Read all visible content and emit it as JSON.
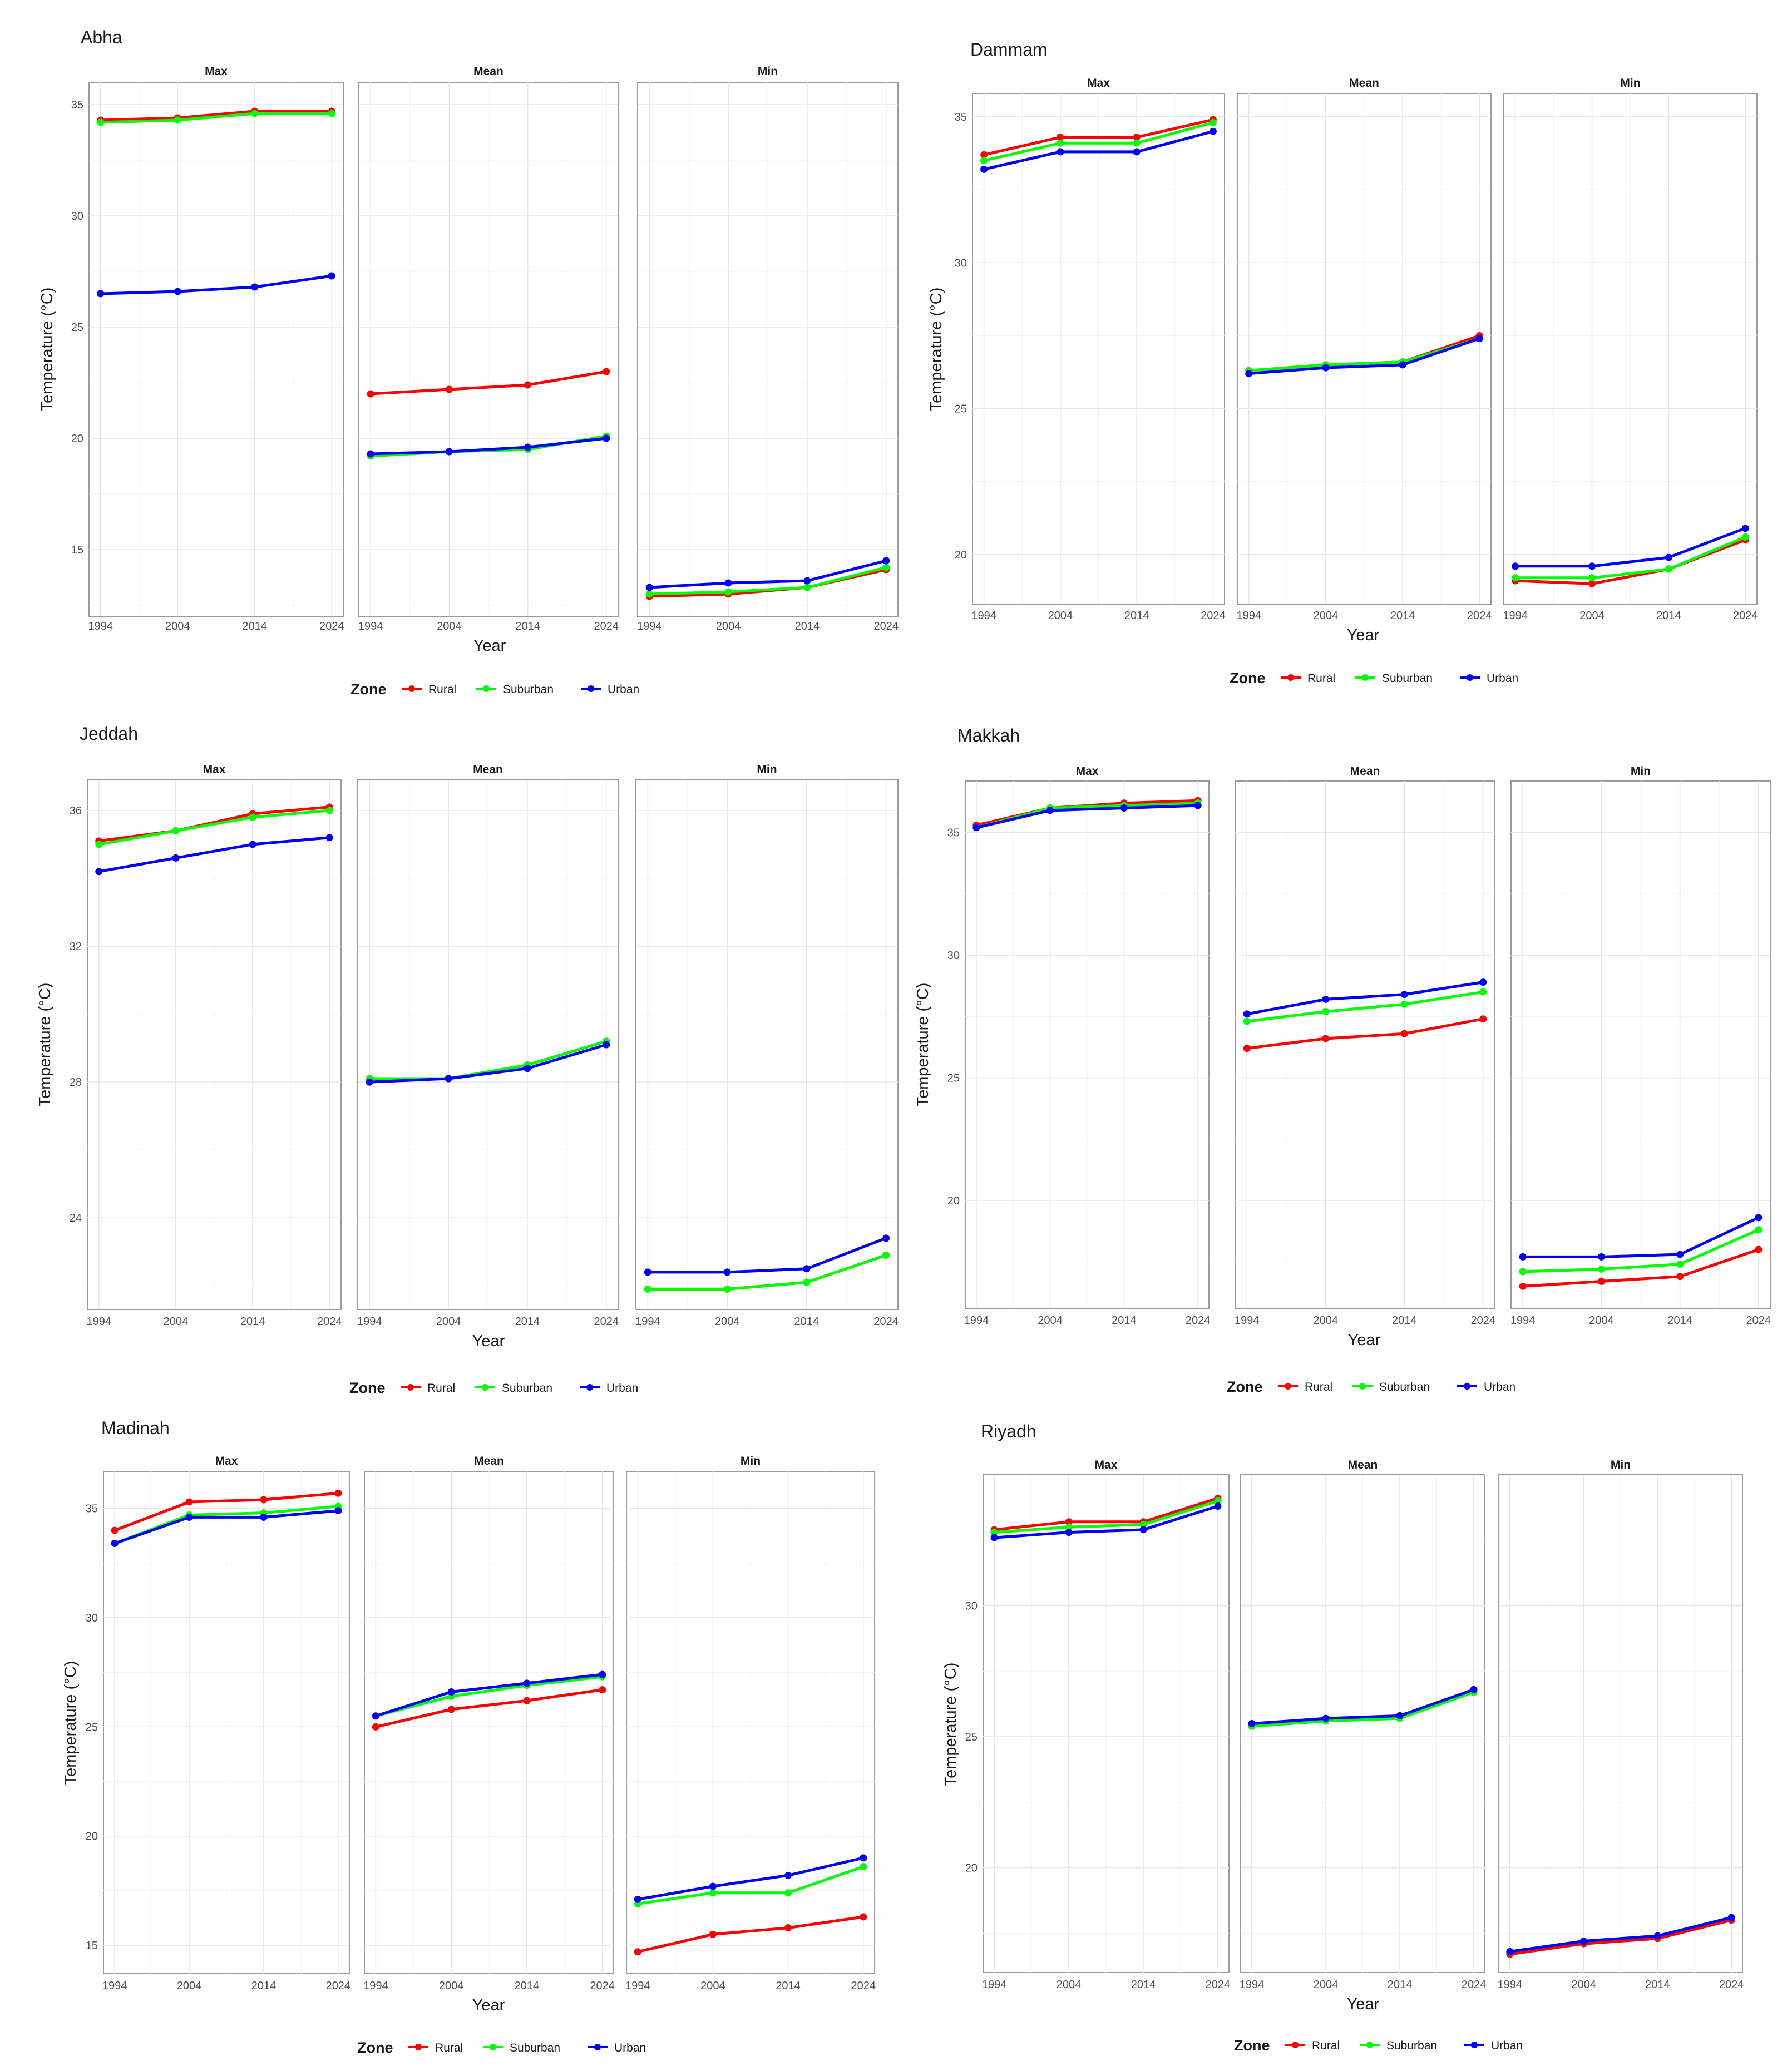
{
  "legend": {
    "title": "Zone",
    "zones": [
      "Rural",
      "Suburban",
      "Urban"
    ]
  },
  "colors": {
    "Rural": "#ff0000",
    "Suburban": "#00ff00",
    "Urban": "#0000ff"
  },
  "chart_data": [
    {
      "type": "line",
      "title": "Abha",
      "xlabel": "Year",
      "ylabel": "Temperature (°C)",
      "x": [
        1994,
        2004,
        2014,
        2024
      ],
      "x_tick_labels": [
        "1994",
        "2004",
        "2014",
        "2024"
      ],
      "ylim": [
        12,
        36
      ],
      "y_ticks": [
        15,
        20,
        25,
        30,
        35
      ],
      "facets": [
        {
          "label": "Max",
          "series": [
            {
              "name": "Rural",
              "values": [
                34.3,
                34.4,
                34.7,
                34.7
              ]
            },
            {
              "name": "Suburban",
              "values": [
                34.2,
                34.3,
                34.6,
                34.6
              ]
            },
            {
              "name": "Urban",
              "values": [
                26.5,
                26.6,
                26.8,
                27.3
              ]
            }
          ]
        },
        {
          "label": "Mean",
          "series": [
            {
              "name": "Rural",
              "values": [
                22.0,
                22.2,
                22.4,
                23.0
              ]
            },
            {
              "name": "Suburban",
              "values": [
                19.2,
                19.4,
                19.5,
                20.1
              ]
            },
            {
              "name": "Urban",
              "values": [
                19.3,
                19.4,
                19.6,
                20.0
              ]
            }
          ]
        },
        {
          "label": "Min",
          "series": [
            {
              "name": "Rural",
              "values": [
                12.9,
                13.0,
                13.3,
                14.1
              ]
            },
            {
              "name": "Suburban",
              "values": [
                13.0,
                13.1,
                13.3,
                14.2
              ]
            },
            {
              "name": "Urban",
              "values": [
                13.3,
                13.5,
                13.6,
                14.5
              ]
            }
          ]
        }
      ]
    },
    {
      "type": "line",
      "title": "Dammam",
      "xlabel": "Year",
      "ylabel": "Temperature (°C)",
      "x": [
        1994,
        2004,
        2014,
        2024
      ],
      "x_tick_labels": [
        "1994",
        "2004",
        "2014",
        "2024"
      ],
      "ylim": [
        18.3,
        35.8
      ],
      "y_ticks": [
        20,
        25,
        30,
        35
      ],
      "facets": [
        {
          "label": "Max",
          "series": [
            {
              "name": "Rural",
              "values": [
                33.7,
                34.3,
                34.3,
                34.9
              ]
            },
            {
              "name": "Suburban",
              "values": [
                33.5,
                34.1,
                34.1,
                34.8
              ]
            },
            {
              "name": "Urban",
              "values": [
                33.2,
                33.8,
                33.8,
                34.5
              ]
            }
          ]
        },
        {
          "label": "Mean",
          "series": [
            {
              "name": "Rural",
              "values": [
                26.3,
                26.5,
                26.6,
                27.5
              ]
            },
            {
              "name": "Suburban",
              "values": [
                26.3,
                26.5,
                26.6,
                27.4
              ]
            },
            {
              "name": "Urban",
              "values": [
                26.2,
                26.4,
                26.5,
                27.4
              ]
            }
          ]
        },
        {
          "label": "Min",
          "series": [
            {
              "name": "Rural",
              "values": [
                19.1,
                19.0,
                19.5,
                20.5
              ]
            },
            {
              "name": "Suburban",
              "values": [
                19.2,
                19.2,
                19.5,
                20.6
              ]
            },
            {
              "name": "Urban",
              "values": [
                19.6,
                19.6,
                19.9,
                20.9
              ]
            }
          ]
        }
      ]
    },
    {
      "type": "line",
      "title": "Jeddah",
      "xlabel": "Year",
      "ylabel": "Temperature (°C)",
      "x": [
        1994,
        2004,
        2014,
        2024
      ],
      "x_tick_labels": [
        "1994",
        "2004",
        "2014",
        "2024"
      ],
      "ylim": [
        21.3,
        36.9
      ],
      "y_ticks": [
        24,
        28,
        32,
        36
      ],
      "facets": [
        {
          "label": "Max",
          "series": [
            {
              "name": "Rural",
              "values": [
                35.1,
                35.4,
                35.9,
                36.1
              ]
            },
            {
              "name": "Suburban",
              "values": [
                35.0,
                35.4,
                35.8,
                36.0
              ]
            },
            {
              "name": "Urban",
              "values": [
                34.2,
                34.6,
                35.0,
                35.2
              ]
            }
          ]
        },
        {
          "label": "Mean",
          "series": [
            {
              "name": "Rural",
              "values": [
                28.1,
                28.1,
                28.5,
                29.2
              ]
            },
            {
              "name": "Suburban",
              "values": [
                28.1,
                28.1,
                28.5,
                29.2
              ]
            },
            {
              "name": "Urban",
              "values": [
                28.0,
                28.1,
                28.4,
                29.1
              ]
            }
          ]
        },
        {
          "label": "Min",
          "series": [
            {
              "name": "Rural",
              "values": [
                21.9,
                21.9,
                22.1,
                22.9
              ]
            },
            {
              "name": "Suburban",
              "values": [
                21.9,
                21.9,
                22.1,
                22.9
              ]
            },
            {
              "name": "Urban",
              "values": [
                22.4,
                22.4,
                22.5,
                23.4
              ]
            }
          ]
        }
      ]
    },
    {
      "type": "line",
      "title": "Makkah",
      "xlabel": "Year",
      "ylabel": "Temperature (°C)",
      "x": [
        1994,
        2004,
        2014,
        2024
      ],
      "x_tick_labels": [
        "1994",
        "2004",
        "2014",
        "2024"
      ],
      "ylim": [
        15.6,
        37.1
      ],
      "y_ticks": [
        20,
        25,
        30,
        35
      ],
      "facets": [
        {
          "label": "Max",
          "series": [
            {
              "name": "Rural",
              "values": [
                35.3,
                36.0,
                36.2,
                36.3
              ]
            },
            {
              "name": "Suburban",
              "values": [
                35.2,
                36.0,
                36.1,
                36.2
              ]
            },
            {
              "name": "Urban",
              "values": [
                35.2,
                35.9,
                36.0,
                36.1
              ]
            }
          ]
        },
        {
          "label": "Mean",
          "series": [
            {
              "name": "Rural",
              "values": [
                26.2,
                26.6,
                26.8,
                27.4
              ]
            },
            {
              "name": "Suburban",
              "values": [
                27.3,
                27.7,
                28.0,
                28.5
              ]
            },
            {
              "name": "Urban",
              "values": [
                27.6,
                28.2,
                28.4,
                28.9
              ]
            }
          ]
        },
        {
          "label": "Min",
          "series": [
            {
              "name": "Rural",
              "values": [
                16.5,
                16.7,
                16.9,
                18.0
              ]
            },
            {
              "name": "Suburban",
              "values": [
                17.1,
                17.2,
                17.4,
                18.8
              ]
            },
            {
              "name": "Urban",
              "values": [
                17.7,
                17.7,
                17.8,
                19.3
              ]
            }
          ]
        }
      ]
    },
    {
      "type": "line",
      "title": "Madinah",
      "xlabel": "Year",
      "ylabel": "Temperature (°C)",
      "x": [
        1994,
        2004,
        2014,
        2024
      ],
      "x_tick_labels": [
        "1994",
        "2004",
        "2014",
        "2024"
      ],
      "ylim": [
        13.7,
        36.7
      ],
      "y_ticks": [
        15,
        20,
        25,
        30,
        35
      ],
      "facets": [
        {
          "label": "Max",
          "series": [
            {
              "name": "Rural",
              "values": [
                34.0,
                35.3,
                35.4,
                35.7
              ]
            },
            {
              "name": "Suburban",
              "values": [
                33.4,
                34.7,
                34.8,
                35.1
              ]
            },
            {
              "name": "Urban",
              "values": [
                33.4,
                34.6,
                34.6,
                34.9
              ]
            }
          ]
        },
        {
          "label": "Mean",
          "series": [
            {
              "name": "Rural",
              "values": [
                25.0,
                25.8,
                26.2,
                26.7
              ]
            },
            {
              "name": "Suburban",
              "values": [
                25.5,
                26.4,
                26.9,
                27.3
              ]
            },
            {
              "name": "Urban",
              "values": [
                25.5,
                26.6,
                27.0,
                27.4
              ]
            }
          ]
        },
        {
          "label": "Min",
          "series": [
            {
              "name": "Rural",
              "values": [
                14.7,
                15.5,
                15.8,
                16.3
              ]
            },
            {
              "name": "Suburban",
              "values": [
                16.9,
                17.4,
                17.4,
                18.6
              ]
            },
            {
              "name": "Urban",
              "values": [
                17.1,
                17.7,
                18.2,
                19.0
              ]
            }
          ]
        }
      ]
    },
    {
      "type": "line",
      "title": "Riyadh",
      "xlabel": "Year",
      "ylabel": "Temperature (°C)",
      "x": [
        1994,
        2004,
        2014,
        2024
      ],
      "x_tick_labels": [
        "1994",
        "2004",
        "2014",
        "2024"
      ],
      "ylim": [
        16.0,
        35.0
      ],
      "y_ticks": [
        20,
        25,
        30
      ],
      "facets": [
        {
          "label": "Max",
          "series": [
            {
              "name": "Rural",
              "values": [
                32.9,
                33.2,
                33.2,
                34.1
              ]
            },
            {
              "name": "Suburban",
              "values": [
                32.8,
                33.0,
                33.1,
                34.0
              ]
            },
            {
              "name": "Urban",
              "values": [
                32.6,
                32.8,
                32.9,
                33.8
              ]
            }
          ]
        },
        {
          "label": "Mean",
          "series": [
            {
              "name": "Rural",
              "values": [
                25.4,
                25.6,
                25.8,
                26.7
              ]
            },
            {
              "name": "Suburban",
              "values": [
                25.4,
                25.6,
                25.7,
                26.7
              ]
            },
            {
              "name": "Urban",
              "values": [
                25.5,
                25.7,
                25.8,
                26.8
              ]
            }
          ]
        },
        {
          "label": "Min",
          "series": [
            {
              "name": "Rural",
              "values": [
                16.7,
                17.1,
                17.3,
                18.0
              ]
            },
            {
              "name": "Suburban",
              "values": [
                16.8,
                17.2,
                17.4,
                18.1
              ]
            },
            {
              "name": "Urban",
              "values": [
                16.8,
                17.2,
                17.4,
                18.1
              ]
            }
          ]
        }
      ]
    }
  ]
}
